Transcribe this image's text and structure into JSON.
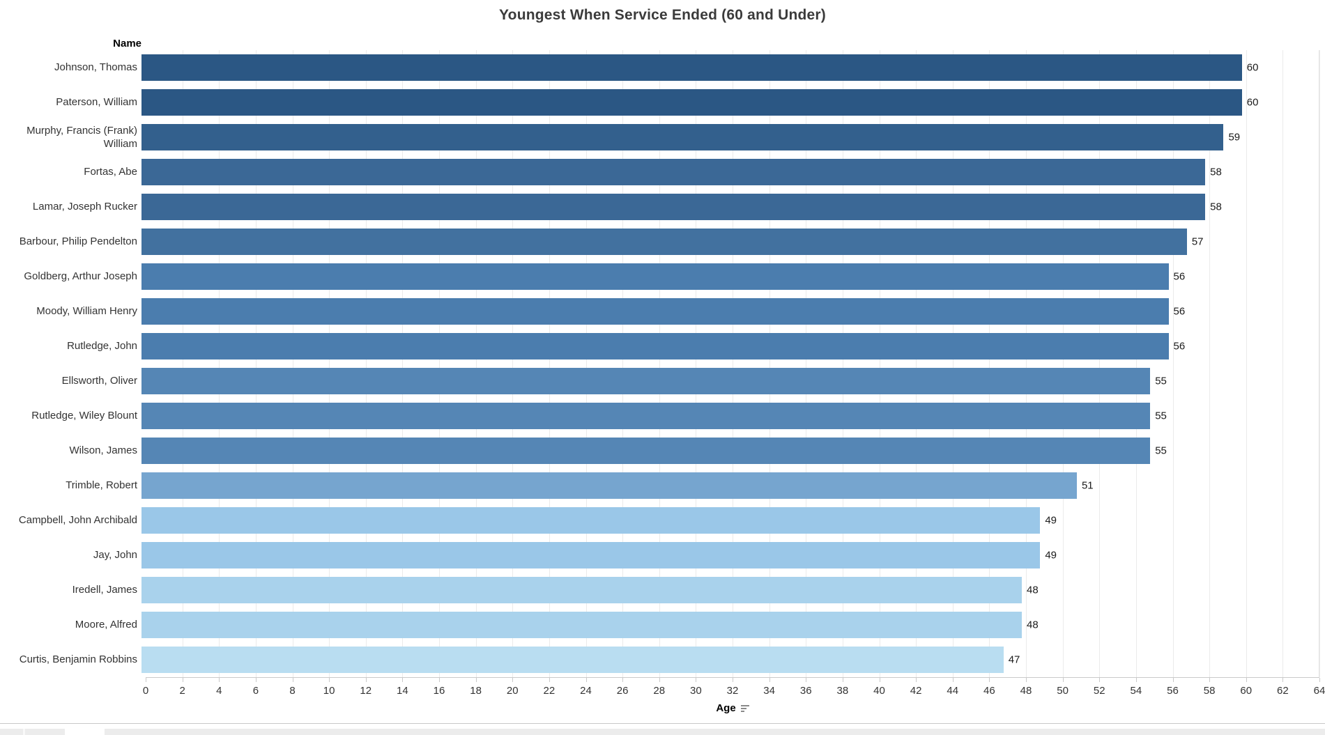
{
  "name_column_header": "Name",
  "chart_data": {
    "type": "bar",
    "orientation": "horizontal",
    "title": "Youngest When Service Ended (60 and Under)",
    "xlabel": "Age",
    "ylabel": "Name",
    "xlim": [
      0,
      64
    ],
    "xticks": [
      0,
      2,
      4,
      6,
      8,
      10,
      12,
      14,
      16,
      18,
      20,
      22,
      24,
      26,
      28,
      30,
      32,
      34,
      36,
      38,
      40,
      42,
      44,
      46,
      48,
      50,
      52,
      54,
      56,
      58,
      60,
      62,
      64
    ],
    "grid": "vertical gridlines every 2 units",
    "legend": "none",
    "sort": "descending by Age",
    "value_labels_shown": true,
    "categories": [
      "Johnson, Thomas",
      "Paterson, William",
      "Murphy, Francis (Frank) William",
      "Fortas, Abe",
      "Lamar, Joseph Rucker",
      "Barbour, Philip Pendelton",
      "Goldberg, Arthur Joseph",
      "Moody, William Henry",
      "Rutledge, John",
      "Ellsworth, Oliver",
      "Rutledge, Wiley Blount",
      "Wilson, James",
      "Trimble, Robert",
      "Campbell, John Archibald",
      "Jay, John",
      "Iredell, James",
      "Moore, Alfred",
      "Curtis, Benjamin Robbins"
    ],
    "values": [
      60,
      60,
      59,
      58,
      58,
      57,
      56,
      56,
      56,
      55,
      55,
      55,
      51,
      49,
      49,
      48,
      48,
      47
    ],
    "bar_colors": [
      "#2B5784",
      "#2B5784",
      "#33608D",
      "#3B6896",
      "#3B6896",
      "#42719F",
      "#4B7DAE",
      "#4B7DAE",
      "#4B7DAE",
      "#5586B5",
      "#5586B5",
      "#5586B5",
      "#76A5CF",
      "#9AC7E8",
      "#9AC7E8",
      "#A9D2EC",
      "#A9D2EC",
      "#B9DDF1"
    ]
  },
  "icons": {
    "sort_descending": "sort-descending-icon"
  },
  "colors": {
    "title_text": "#3b3b3b",
    "label_text": "#333333",
    "value_label_text": "#1a1a1a",
    "grid_line": "#ebebeb",
    "axis_line": "#c9c9c9",
    "tick_mark": "#c9c9c9",
    "plot_right_border": "#e3e3e3",
    "bottom_border": "#c8c8c8",
    "bottom_strip_bg": "#ececec",
    "active_sheet_tab_bg": "#ffffff",
    "strip_divider": "#f8f8f8"
  }
}
